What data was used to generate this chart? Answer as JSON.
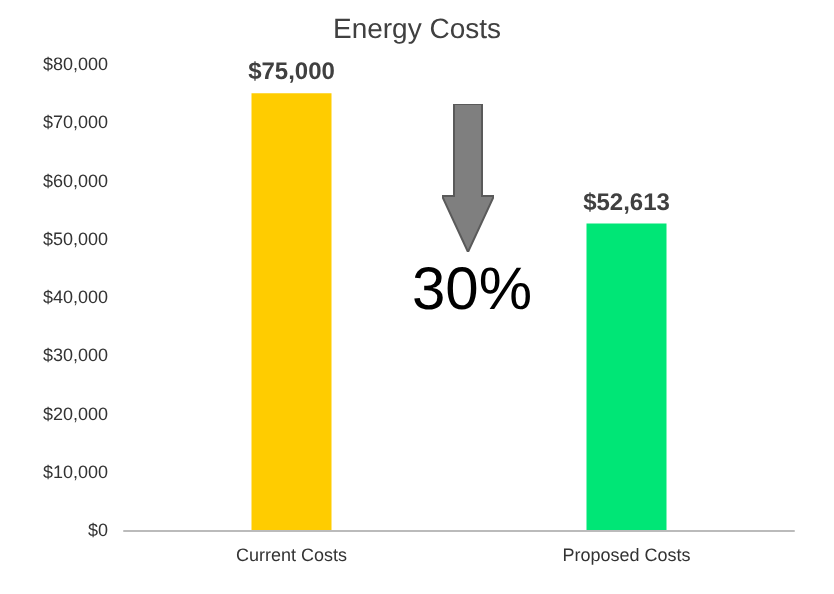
{
  "chart_data": {
    "type": "bar",
    "title": "Energy Costs",
    "categories": [
      "Current Costs",
      "Proposed Costs"
    ],
    "values": [
      75000,
      52613
    ],
    "colors": [
      "#ffcc00",
      "#00e676"
    ],
    "value_labels": [
      "$75,000",
      "$52,613"
    ],
    "ylim": [
      0,
      80000
    ],
    "yticks": [
      {
        "value": 0,
        "label": "$0"
      },
      {
        "value": 10000,
        "label": "$10,000"
      },
      {
        "value": 20000,
        "label": "$20,000"
      },
      {
        "value": 30000,
        "label": "$30,000"
      },
      {
        "value": 40000,
        "label": "$40,000"
      },
      {
        "value": 50000,
        "label": "$50,000"
      },
      {
        "value": 60000,
        "label": "$60,000"
      },
      {
        "value": 70000,
        "label": "$70,000"
      },
      {
        "value": 80000,
        "label": "$80,000"
      }
    ],
    "annotations": [
      "30%"
    ],
    "line_style": "solid"
  }
}
